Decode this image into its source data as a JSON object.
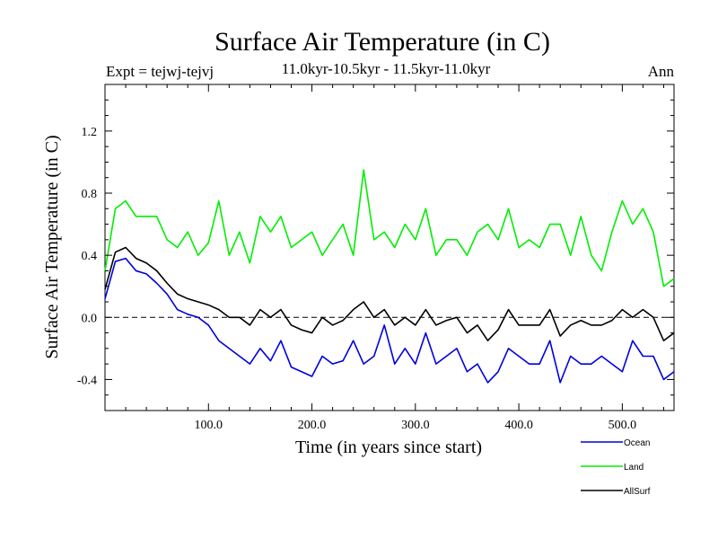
{
  "header": {
    "title": "Surface Air Temperature (in C)",
    "experiment": "Expt = tejwj-tejvj",
    "period": "11.0kyr-10.5kyr - 11.5kyr-11.0kyr",
    "season": "Ann"
  },
  "chart_data": {
    "type": "line",
    "title": "Surface Air Temperature (in C)",
    "xlabel": "Time (in years since start)",
    "ylabel": "Surface Air Temperature (in C)",
    "xlim": [
      0,
      550
    ],
    "ylim": [
      -0.6,
      1.5
    ],
    "x_ticks": [
      100,
      200,
      300,
      400,
      500
    ],
    "x_tick_labels": [
      "100.0",
      "200.0",
      "300.0",
      "400.0",
      "500.0"
    ],
    "y_ticks": [
      -0.4,
      0.0,
      0.4,
      0.8,
      1.2
    ],
    "y_tick_labels": [
      "-0.4",
      "0.0",
      "0.4",
      "0.8",
      "1.2"
    ],
    "zero_line": 0.0,
    "legend_position": "bottom-right",
    "x_step": 10,
    "series": [
      {
        "name": "Ocean",
        "color": "#0000dd",
        "values": [
          0.12,
          0.36,
          0.38,
          0.3,
          0.28,
          0.22,
          0.15,
          0.05,
          0.02,
          0.0,
          -0.05,
          -0.15,
          -0.2,
          -0.25,
          -0.3,
          -0.2,
          -0.28,
          -0.15,
          -0.32,
          -0.35,
          -0.38,
          -0.25,
          -0.3,
          -0.28,
          -0.15,
          -0.3,
          -0.25,
          -0.05,
          -0.3,
          -0.2,
          -0.3,
          -0.1,
          -0.3,
          -0.25,
          -0.2,
          -0.35,
          -0.3,
          -0.42,
          -0.35,
          -0.2,
          -0.25,
          -0.3,
          -0.3,
          -0.15,
          -0.42,
          -0.25,
          -0.3,
          -0.3,
          -0.25,
          -0.3,
          -0.35,
          -0.15,
          -0.25,
          -0.25,
          -0.4,
          -0.35
        ]
      },
      {
        "name": "Land",
        "color": "#00ee00",
        "values": [
          0.3,
          0.7,
          0.75,
          0.65,
          0.65,
          0.65,
          0.5,
          0.45,
          0.55,
          0.4,
          0.48,
          0.75,
          0.4,
          0.55,
          0.35,
          0.65,
          0.55,
          0.65,
          0.45,
          0.5,
          0.55,
          0.4,
          0.5,
          0.6,
          0.4,
          0.95,
          0.5,
          0.55,
          0.45,
          0.6,
          0.5,
          0.7,
          0.4,
          0.5,
          0.5,
          0.4,
          0.55,
          0.6,
          0.5,
          0.7,
          0.45,
          0.5,
          0.45,
          0.6,
          0.6,
          0.4,
          0.65,
          0.4,
          0.3,
          0.55,
          0.75,
          0.6,
          0.7,
          0.55,
          0.2,
          0.25
        ]
      },
      {
        "name": "AllSurf",
        "color": "#000000",
        "values": [
          0.18,
          0.42,
          0.45,
          0.38,
          0.35,
          0.3,
          0.22,
          0.15,
          0.12,
          0.1,
          0.08,
          0.05,
          0.0,
          0.0,
          -0.05,
          0.05,
          0.0,
          0.05,
          -0.05,
          -0.08,
          -0.1,
          0.0,
          -0.05,
          -0.02,
          0.05,
          0.1,
          0.0,
          0.05,
          -0.05,
          0.0,
          -0.05,
          0.05,
          -0.05,
          -0.02,
          0.0,
          -0.1,
          -0.05,
          -0.15,
          -0.08,
          0.05,
          -0.05,
          -0.05,
          -0.05,
          0.05,
          -0.12,
          -0.05,
          -0.02,
          -0.05,
          -0.05,
          -0.02,
          0.05,
          0.0,
          0.05,
          0.0,
          -0.15,
          -0.1
        ]
      }
    ]
  }
}
